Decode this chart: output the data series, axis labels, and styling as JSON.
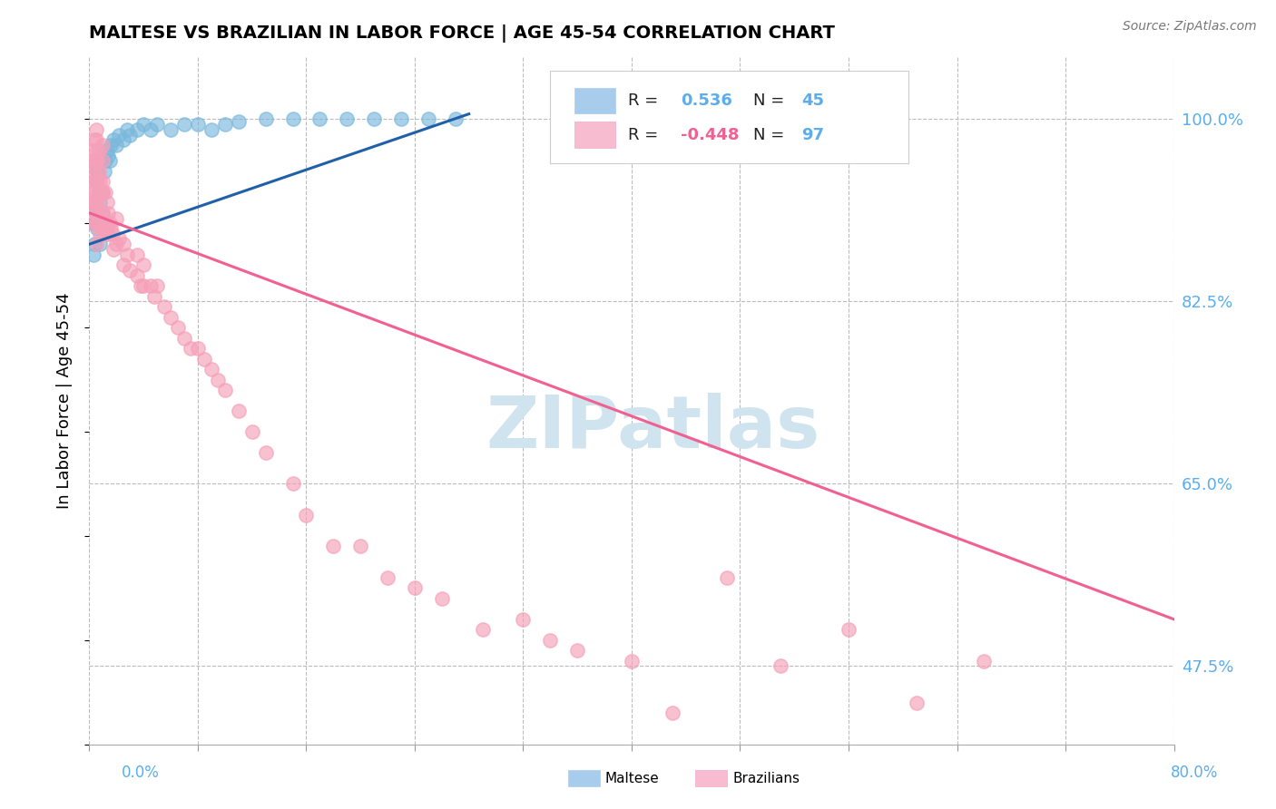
{
  "title": "MALTESE VS BRAZILIAN IN LABOR FORCE | AGE 45-54 CORRELATION CHART",
  "ylabel": "In Labor Force | Age 45-54",
  "source": "Source: ZipAtlas.com",
  "maltese_R": 0.536,
  "maltese_N": 45,
  "brazilian_R": -0.448,
  "brazilian_N": 97,
  "blue_scatter_color": "#7ab8dc",
  "pink_scatter_color": "#f5a0b8",
  "blue_line_color": "#2060a8",
  "pink_line_color": "#f06090",
  "watermark_color": "#d0e4f0",
  "legend_blue_color": "#a8ccec",
  "legend_pink_color": "#f8bcd0",
  "axis_label_color": "#5aaeee",
  "x_min": 0.0,
  "x_max": 0.8,
  "y_min": 0.4,
  "y_max": 1.06,
  "yticks": [
    0.475,
    0.65,
    0.825,
    1.0
  ],
  "ytick_labels": [
    "47.5%",
    "65.0%",
    "82.5%",
    "100.0%"
  ],
  "maltese_x": [
    0.002,
    0.003,
    0.004,
    0.004,
    0.005,
    0.005,
    0.005,
    0.006,
    0.006,
    0.007,
    0.008,
    0.008,
    0.009,
    0.01,
    0.01,
    0.011,
    0.012,
    0.013,
    0.014,
    0.015,
    0.016,
    0.018,
    0.02,
    0.022,
    0.025,
    0.028,
    0.03,
    0.035,
    0.04,
    0.045,
    0.05,
    0.06,
    0.07,
    0.08,
    0.09,
    0.1,
    0.11,
    0.13,
    0.15,
    0.17,
    0.19,
    0.21,
    0.23,
    0.25,
    0.27
  ],
  "maltese_y": [
    0.92,
    0.87,
    0.9,
    0.88,
    0.955,
    0.94,
    0.91,
    0.895,
    0.95,
    0.93,
    0.88,
    0.92,
    0.9,
    0.93,
    0.91,
    0.95,
    0.96,
    0.97,
    0.965,
    0.96,
    0.975,
    0.98,
    0.975,
    0.985,
    0.98,
    0.99,
    0.985,
    0.99,
    0.995,
    0.99,
    0.995,
    0.99,
    0.995,
    0.995,
    0.99,
    0.995,
    0.998,
    1.0,
    1.0,
    1.0,
    1.0,
    1.0,
    1.0,
    1.0,
    1.0
  ],
  "maltese_trend_x": [
    0.0,
    0.28
  ],
  "maltese_trend_y": [
    0.88,
    1.005
  ],
  "brazilian_x": [
    0.002,
    0.002,
    0.002,
    0.003,
    0.003,
    0.003,
    0.004,
    0.004,
    0.004,
    0.004,
    0.005,
    0.005,
    0.005,
    0.005,
    0.005,
    0.005,
    0.005,
    0.005,
    0.005,
    0.005,
    0.005,
    0.005,
    0.006,
    0.006,
    0.006,
    0.007,
    0.007,
    0.007,
    0.007,
    0.008,
    0.008,
    0.008,
    0.009,
    0.009,
    0.01,
    0.01,
    0.01,
    0.01,
    0.01,
    0.01,
    0.011,
    0.012,
    0.012,
    0.013,
    0.013,
    0.014,
    0.014,
    0.015,
    0.016,
    0.017,
    0.018,
    0.02,
    0.02,
    0.022,
    0.025,
    0.025,
    0.028,
    0.03,
    0.035,
    0.035,
    0.038,
    0.04,
    0.04,
    0.045,
    0.048,
    0.05,
    0.055,
    0.06,
    0.065,
    0.07,
    0.075,
    0.08,
    0.085,
    0.09,
    0.095,
    0.1,
    0.11,
    0.12,
    0.13,
    0.15,
    0.16,
    0.18,
    0.2,
    0.22,
    0.24,
    0.26,
    0.29,
    0.32,
    0.34,
    0.36,
    0.4,
    0.43,
    0.47,
    0.51,
    0.56,
    0.61,
    0.66
  ],
  "brazilian_y": [
    0.92,
    0.9,
    0.97,
    0.92,
    0.96,
    0.95,
    0.92,
    0.94,
    0.93,
    0.98,
    0.92,
    0.95,
    0.96,
    0.9,
    0.91,
    0.93,
    0.94,
    0.96,
    0.97,
    0.98,
    0.99,
    0.88,
    0.9,
    0.94,
    0.96,
    0.91,
    0.93,
    0.95,
    0.97,
    0.89,
    0.91,
    0.94,
    0.9,
    0.93,
    0.895,
    0.91,
    0.93,
    0.94,
    0.96,
    0.975,
    0.895,
    0.89,
    0.93,
    0.895,
    0.92,
    0.89,
    0.91,
    0.9,
    0.895,
    0.89,
    0.875,
    0.88,
    0.905,
    0.885,
    0.86,
    0.88,
    0.87,
    0.855,
    0.85,
    0.87,
    0.84,
    0.84,
    0.86,
    0.84,
    0.83,
    0.84,
    0.82,
    0.81,
    0.8,
    0.79,
    0.78,
    0.78,
    0.77,
    0.76,
    0.75,
    0.74,
    0.72,
    0.7,
    0.68,
    0.65,
    0.62,
    0.59,
    0.59,
    0.56,
    0.55,
    0.54,
    0.51,
    0.52,
    0.5,
    0.49,
    0.48,
    0.43,
    0.56,
    0.475,
    0.51,
    0.44,
    0.48
  ],
  "brazilian_trend_x": [
    0.0,
    0.8
  ],
  "brazilian_trend_y": [
    0.91,
    0.52
  ]
}
